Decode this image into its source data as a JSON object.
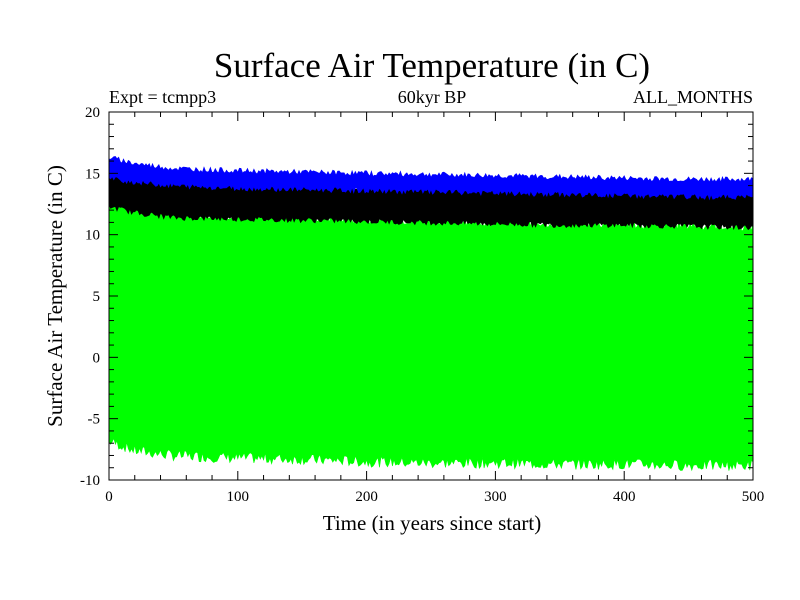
{
  "chart_data": {
    "type": "area",
    "title": "Surface Air Temperature (in C)",
    "subtitle_left": "Expt = tcmpp3",
    "subtitle_center": "60kyr BP",
    "subtitle_right": "ALL_MONTHS",
    "xlabel": "Time (in years since start)",
    "ylabel": "Surface Air Temperature (in C)",
    "xlim": [
      0,
      500
    ],
    "ylim": [
      -10,
      20
    ],
    "x_ticks": [
      0,
      100,
      200,
      300,
      400,
      500
    ],
    "x_tick_labels": [
      "0",
      "100",
      "200",
      "300",
      "400",
      "500"
    ],
    "y_ticks": [
      -10,
      -5,
      0,
      5,
      10,
      15,
      20
    ],
    "y_tick_labels": [
      "-10",
      "-5",
      "0",
      "5",
      "10",
      "15",
      "20"
    ],
    "grid": false,
    "series": [
      {
        "name": "monthly-range",
        "color": "#00ff00",
        "x": [
          0,
          20,
          50,
          100,
          150,
          200,
          250,
          300,
          350,
          400,
          450,
          500
        ],
        "upper": [
          12.8,
          12.2,
          11.8,
          11.6,
          11.5,
          11.3,
          11.2,
          11.1,
          11.0,
          10.9,
          10.8,
          10.7
        ],
        "lower": [
          -6.8,
          -7.6,
          -8.0,
          -8.2,
          -8.3,
          -8.5,
          -8.6,
          -8.6,
          -8.7,
          -8.7,
          -8.8,
          -8.8
        ]
      },
      {
        "name": "annual-spread",
        "color": "#000000",
        "x": [
          0,
          20,
          50,
          100,
          150,
          200,
          250,
          300,
          350,
          400,
          450,
          500
        ],
        "upper": [
          15.0,
          14.6,
          14.3,
          14.1,
          14.0,
          13.9,
          13.8,
          13.7,
          13.6,
          13.5,
          13.4,
          13.4
        ],
        "lower": [
          12.3,
          11.8,
          11.4,
          11.3,
          11.2,
          11.1,
          11.0,
          10.9,
          10.8,
          10.8,
          10.7,
          10.6
        ]
      },
      {
        "name": "annual-max",
        "color": "#0000ff",
        "x": [
          0,
          20,
          50,
          100,
          150,
          200,
          250,
          300,
          350,
          400,
          450,
          500
        ],
        "upper": [
          16.3,
          15.8,
          15.4,
          15.2,
          15.1,
          15.0,
          14.9,
          14.8,
          14.7,
          14.6,
          14.5,
          14.5
        ],
        "lower": [
          14.6,
          14.3,
          14.0,
          13.8,
          13.7,
          13.6,
          13.5,
          13.4,
          13.3,
          13.2,
          13.1,
          13.1
        ]
      }
    ]
  }
}
